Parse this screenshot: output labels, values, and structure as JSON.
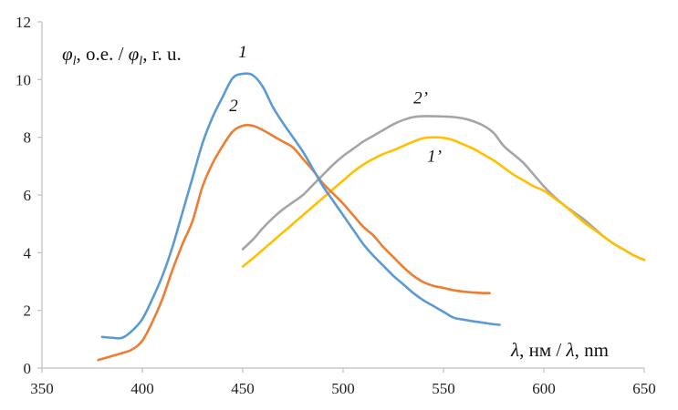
{
  "chart_data": {
    "type": "line",
    "xlabel_prefix": "λ",
    "xlabel_rest": ", нм / ",
    "xlabel_prefix2": "λ",
    "xlabel_rest2": ", nm",
    "ylabel_sym": "φ",
    "ylabel_sub": "l",
    "ylabel_mid": ", о.е. / ",
    "ylabel_sym2": "φ",
    "ylabel_sub2": "l",
    "ylabel_end": ", r. u.",
    "xlim": [
      350,
      650
    ],
    "ylim": [
      0,
      12
    ],
    "x_ticks": [
      "350",
      "400",
      "450",
      "500",
      "550",
      "600",
      "650"
    ],
    "y_ticks": [
      "0",
      "2",
      "4",
      "6",
      "8",
      "10",
      "12"
    ],
    "grid": "none",
    "series": [
      {
        "name": "1",
        "color": "#5B9BD5",
        "points": [
          [
            380,
            1.08
          ],
          [
            385,
            1.05
          ],
          [
            390,
            1.05
          ],
          [
            395,
            1.3
          ],
          [
            400,
            1.7
          ],
          [
            405,
            2.4
          ],
          [
            410,
            3.2
          ],
          [
            415,
            4.2
          ],
          [
            420,
            5.4
          ],
          [
            425,
            6.6
          ],
          [
            430,
            7.8
          ],
          [
            435,
            8.7
          ],
          [
            440,
            9.4
          ],
          [
            445,
            10.05
          ],
          [
            450,
            10.2
          ],
          [
            455,
            10.15
          ],
          [
            460,
            9.75
          ],
          [
            465,
            9.05
          ],
          [
            470,
            8.5
          ],
          [
            475,
            8.0
          ],
          [
            480,
            7.5
          ],
          [
            485,
            6.9
          ],
          [
            490,
            6.3
          ],
          [
            495,
            5.8
          ],
          [
            500,
            5.3
          ],
          [
            505,
            4.8
          ],
          [
            510,
            4.3
          ],
          [
            515,
            3.9
          ],
          [
            520,
            3.55
          ],
          [
            525,
            3.2
          ],
          [
            530,
            2.9
          ],
          [
            535,
            2.6
          ],
          [
            540,
            2.35
          ],
          [
            545,
            2.15
          ],
          [
            550,
            1.95
          ],
          [
            555,
            1.75
          ],
          [
            560,
            1.68
          ],
          [
            565,
            1.62
          ],
          [
            570,
            1.57
          ],
          [
            575,
            1.52
          ],
          [
            578,
            1.5
          ]
        ]
      },
      {
        "name": "2",
        "color": "#ED7D31",
        "points": [
          [
            378,
            0.28
          ],
          [
            385,
            0.42
          ],
          [
            390,
            0.52
          ],
          [
            395,
            0.65
          ],
          [
            400,
            0.95
          ],
          [
            405,
            1.6
          ],
          [
            410,
            2.4
          ],
          [
            415,
            3.4
          ],
          [
            420,
            4.3
          ],
          [
            425,
            5.1
          ],
          [
            430,
            6.3
          ],
          [
            435,
            7.1
          ],
          [
            440,
            7.7
          ],
          [
            445,
            8.2
          ],
          [
            450,
            8.4
          ],
          [
            455,
            8.4
          ],
          [
            460,
            8.25
          ],
          [
            465,
            8.05
          ],
          [
            470,
            7.85
          ],
          [
            475,
            7.65
          ],
          [
            480,
            7.25
          ],
          [
            485,
            6.85
          ],
          [
            490,
            6.4
          ],
          [
            495,
            6.05
          ],
          [
            500,
            5.7
          ],
          [
            505,
            5.3
          ],
          [
            510,
            4.9
          ],
          [
            515,
            4.6
          ],
          [
            520,
            4.2
          ],
          [
            525,
            3.85
          ],
          [
            530,
            3.5
          ],
          [
            535,
            3.2
          ],
          [
            540,
            2.98
          ],
          [
            545,
            2.85
          ],
          [
            550,
            2.78
          ],
          [
            555,
            2.7
          ],
          [
            560,
            2.65
          ],
          [
            565,
            2.62
          ],
          [
            570,
            2.6
          ],
          [
            573,
            2.6
          ]
        ]
      },
      {
        "name": "2’",
        "color": "#A5A5A5",
        "points": [
          [
            450,
            4.12
          ],
          [
            455,
            4.45
          ],
          [
            460,
            4.85
          ],
          [
            465,
            5.2
          ],
          [
            470,
            5.5
          ],
          [
            475,
            5.75
          ],
          [
            480,
            6.0
          ],
          [
            485,
            6.35
          ],
          [
            490,
            6.7
          ],
          [
            495,
            7.05
          ],
          [
            500,
            7.35
          ],
          [
            505,
            7.6
          ],
          [
            510,
            7.85
          ],
          [
            515,
            8.05
          ],
          [
            520,
            8.25
          ],
          [
            525,
            8.45
          ],
          [
            530,
            8.6
          ],
          [
            535,
            8.7
          ],
          [
            540,
            8.73
          ],
          [
            545,
            8.73
          ],
          [
            550,
            8.72
          ],
          [
            555,
            8.7
          ],
          [
            560,
            8.65
          ],
          [
            565,
            8.55
          ],
          [
            570,
            8.4
          ],
          [
            575,
            8.15
          ],
          [
            580,
            7.7
          ],
          [
            585,
            7.4
          ],
          [
            590,
            7.1
          ],
          [
            595,
            6.7
          ],
          [
            600,
            6.3
          ],
          [
            605,
            5.95
          ],
          [
            610,
            5.65
          ],
          [
            615,
            5.4
          ],
          [
            620,
            5.15
          ],
          [
            625,
            4.85
          ],
          [
            630,
            4.55
          ],
          [
            635,
            4.3
          ],
          [
            640,
            4.1
          ],
          [
            645,
            3.9
          ],
          [
            650,
            3.75
          ]
        ]
      },
      {
        "name": "1’",
        "color": "#FFC000",
        "points": [
          [
            450,
            3.52
          ],
          [
            455,
            3.8
          ],
          [
            460,
            4.1
          ],
          [
            465,
            4.4
          ],
          [
            470,
            4.7
          ],
          [
            475,
            5.0
          ],
          [
            480,
            5.3
          ],
          [
            485,
            5.6
          ],
          [
            490,
            5.9
          ],
          [
            495,
            6.2
          ],
          [
            500,
            6.5
          ],
          [
            505,
            6.8
          ],
          [
            510,
            7.05
          ],
          [
            515,
            7.25
          ],
          [
            520,
            7.42
          ],
          [
            525,
            7.55
          ],
          [
            530,
            7.7
          ],
          [
            535,
            7.85
          ],
          [
            540,
            7.97
          ],
          [
            545,
            8.0
          ],
          [
            550,
            7.98
          ],
          [
            555,
            7.9
          ],
          [
            560,
            7.75
          ],
          [
            565,
            7.6
          ],
          [
            570,
            7.4
          ],
          [
            575,
            7.2
          ],
          [
            580,
            6.95
          ],
          [
            585,
            6.7
          ],
          [
            590,
            6.5
          ],
          [
            595,
            6.3
          ],
          [
            600,
            6.15
          ],
          [
            605,
            5.9
          ],
          [
            610,
            5.65
          ],
          [
            615,
            5.35
          ],
          [
            620,
            5.05
          ],
          [
            625,
            4.8
          ],
          [
            630,
            4.55
          ],
          [
            635,
            4.3
          ],
          [
            640,
            4.1
          ],
          [
            645,
            3.9
          ],
          [
            650,
            3.75
          ]
        ]
      }
    ]
  }
}
